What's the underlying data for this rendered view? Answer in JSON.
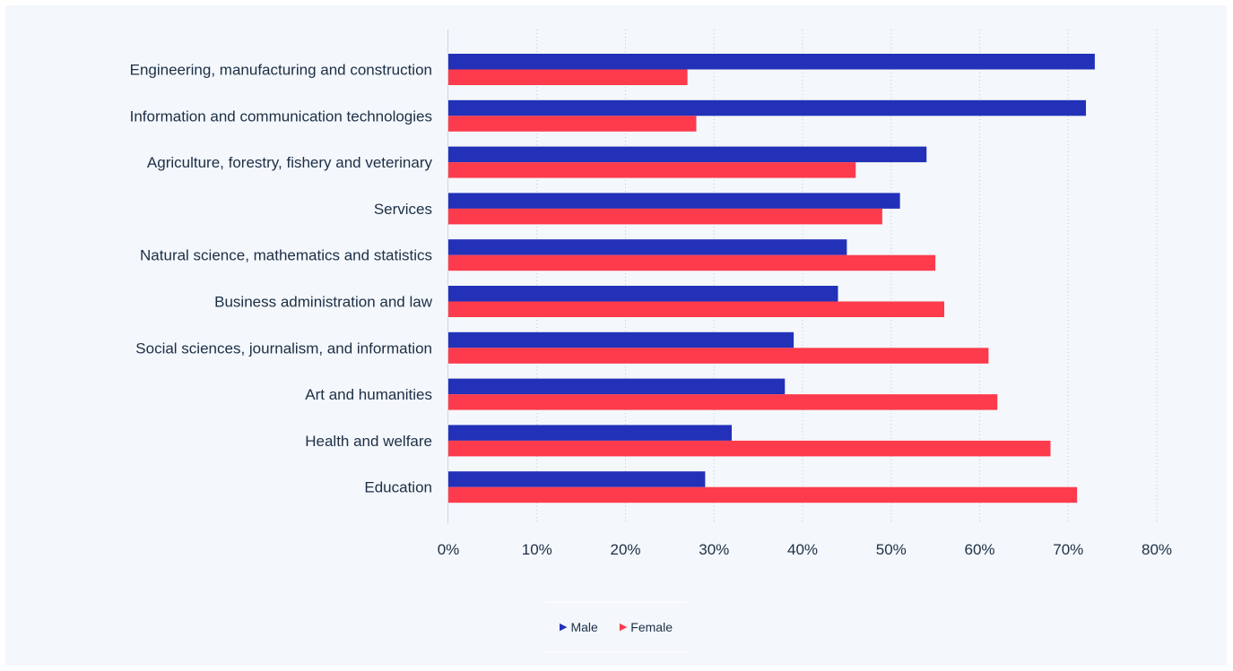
{
  "chart_data": {
    "type": "bar",
    "orientation": "horizontal",
    "categories": [
      "Engineering, manufacturing and construction",
      "Information and communication technologies",
      "Agriculture, forestry, fishery and veterinary",
      "Services",
      "Natural science, mathematics and statistics",
      "Business administration and law",
      "Social sciences, journalism, and information",
      "Art and humanities",
      "Health and welfare",
      "Education"
    ],
    "series": [
      {
        "name": "Male",
        "color": "#2231b8",
        "values": [
          73,
          72,
          54,
          51,
          45,
          44,
          39,
          38,
          32,
          29
        ]
      },
      {
        "name": "Female",
        "color": "#fd3b4c",
        "values": [
          27,
          28,
          46,
          49,
          55,
          56,
          61,
          62,
          68,
          71
        ]
      }
    ],
    "xlim": [
      0,
      80
    ],
    "xticks": [
      "0%",
      "10%",
      "20%",
      "30%",
      "40%",
      "50%",
      "60%",
      "70%",
      "80%"
    ],
    "grid": "vertical dotted",
    "legend_position": "bottom"
  }
}
